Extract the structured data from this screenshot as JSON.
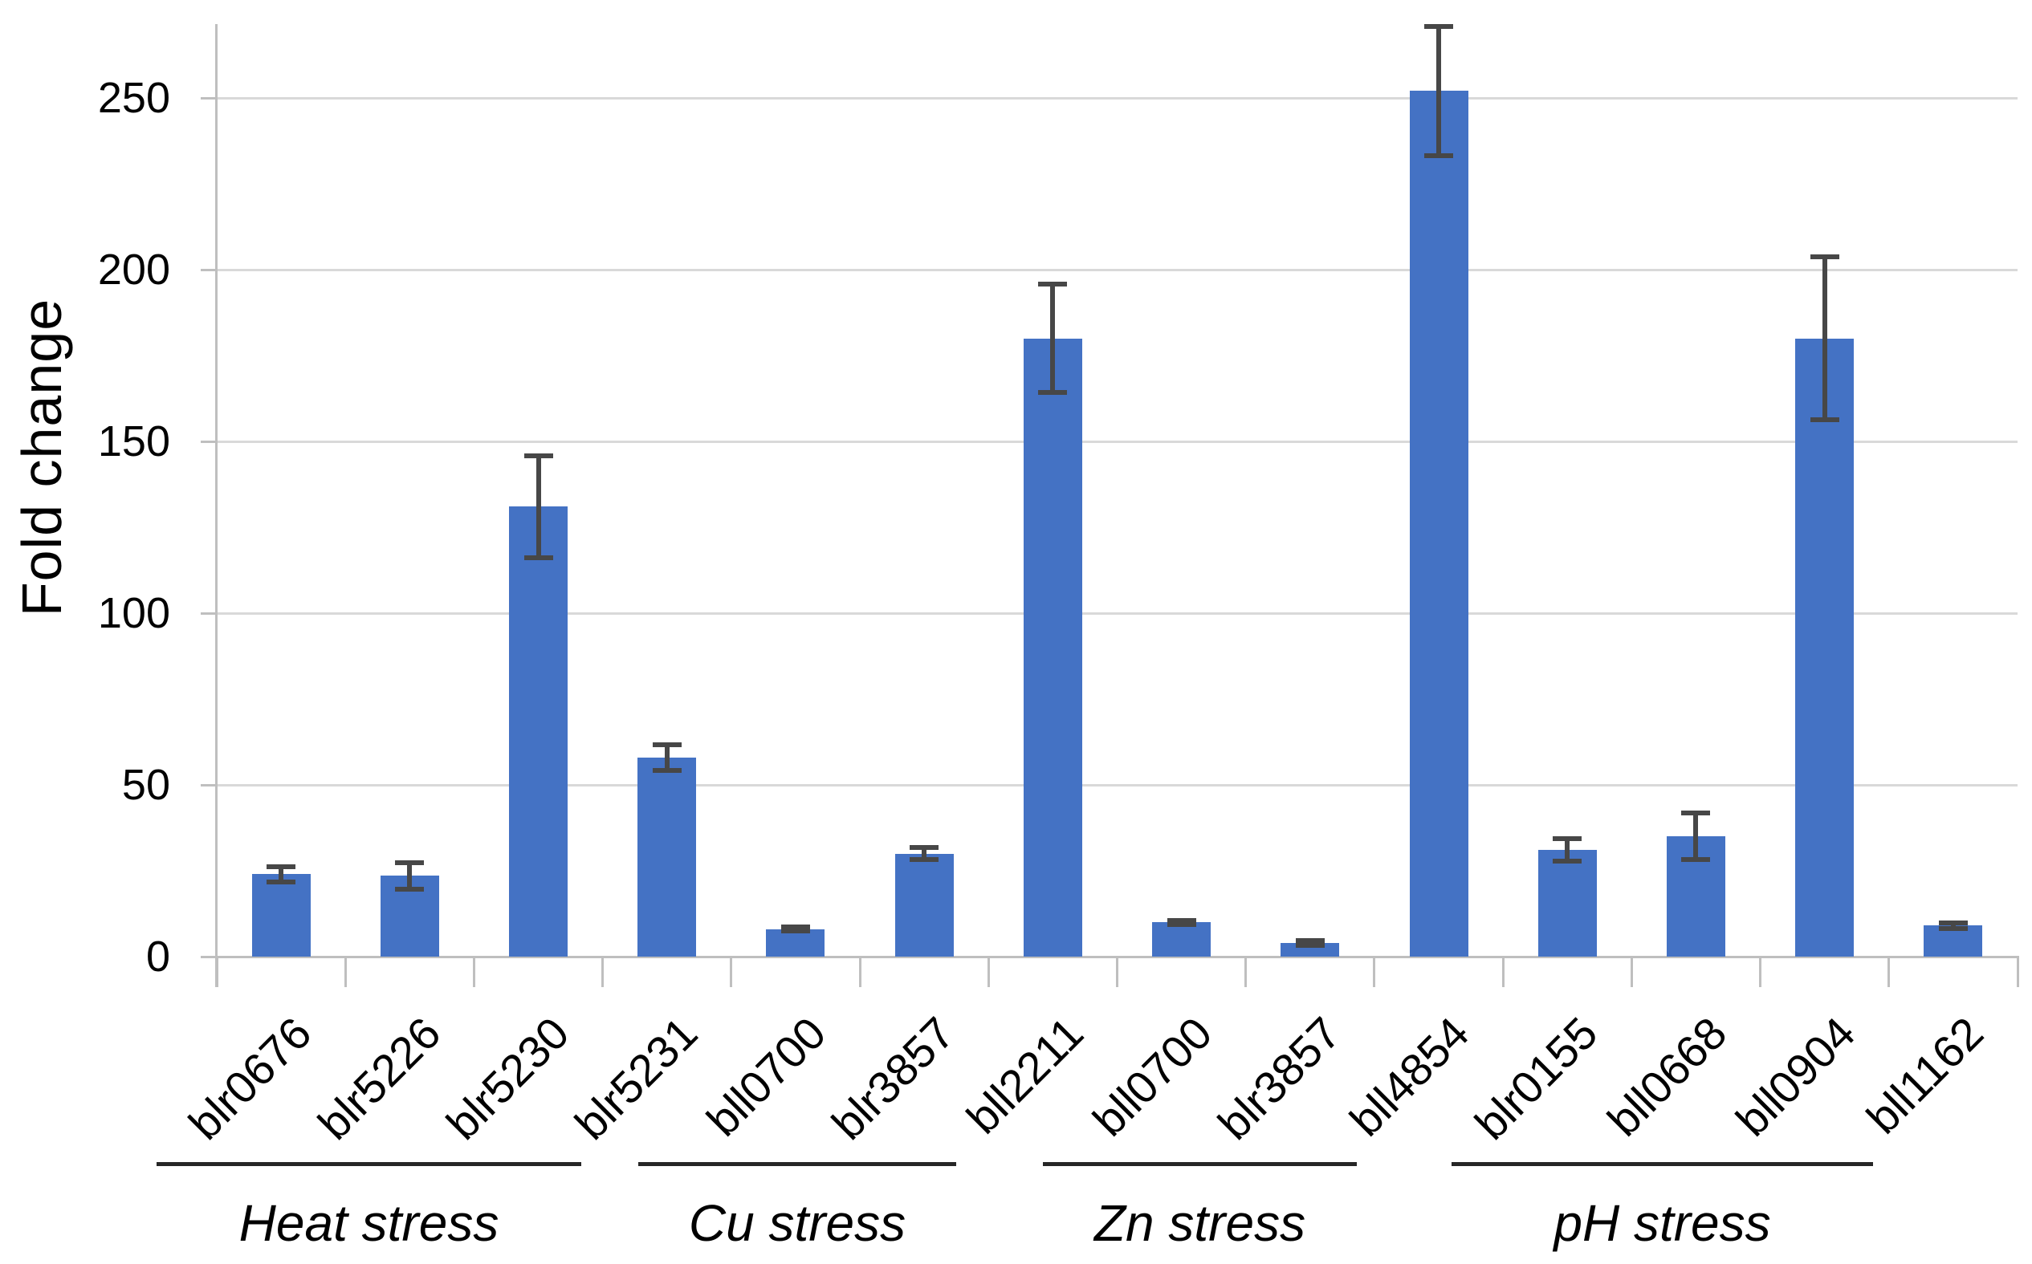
{
  "chart_data": {
    "type": "bar",
    "title": "",
    "ylabel": "Fold change",
    "xlabel": "",
    "ylim": [
      0,
      272
    ],
    "yticks": [
      0,
      50,
      100,
      150,
      200,
      250
    ],
    "grid": "horizontal gridlines on",
    "legend": "none",
    "bar_color": "#4472c4",
    "error_bar_color": "#474747",
    "axis_color": "#bfbfbf",
    "gridline_color": "#d9d9d9",
    "categories": [
      "blr0676",
      "blr5226",
      "blr5230",
      "blr5231",
      "bll0700",
      "blr3857",
      "bll2211",
      "bll0700",
      "blr3857",
      "bll4854",
      "blr0155",
      "bll0668",
      "bll0904",
      "bll1162"
    ],
    "values": [
      24,
      23.5,
      131,
      58,
      8,
      30,
      180,
      10,
      4,
      252,
      31,
      35,
      180,
      9
    ],
    "errors": [
      2.5,
      4,
      15,
      4,
      0.8,
      2,
      16,
      0.8,
      1,
      19,
      3.5,
      7,
      24,
      1
    ],
    "groups": [
      {
        "label": "Heat stress",
        "from": 0,
        "to": 2
      },
      {
        "label": "Cu stress",
        "from": 3,
        "to": 5
      },
      {
        "label": "Zn stress",
        "from": 6,
        "to": 8
      },
      {
        "label": "pH stress",
        "from": 9,
        "to": 13
      }
    ]
  }
}
